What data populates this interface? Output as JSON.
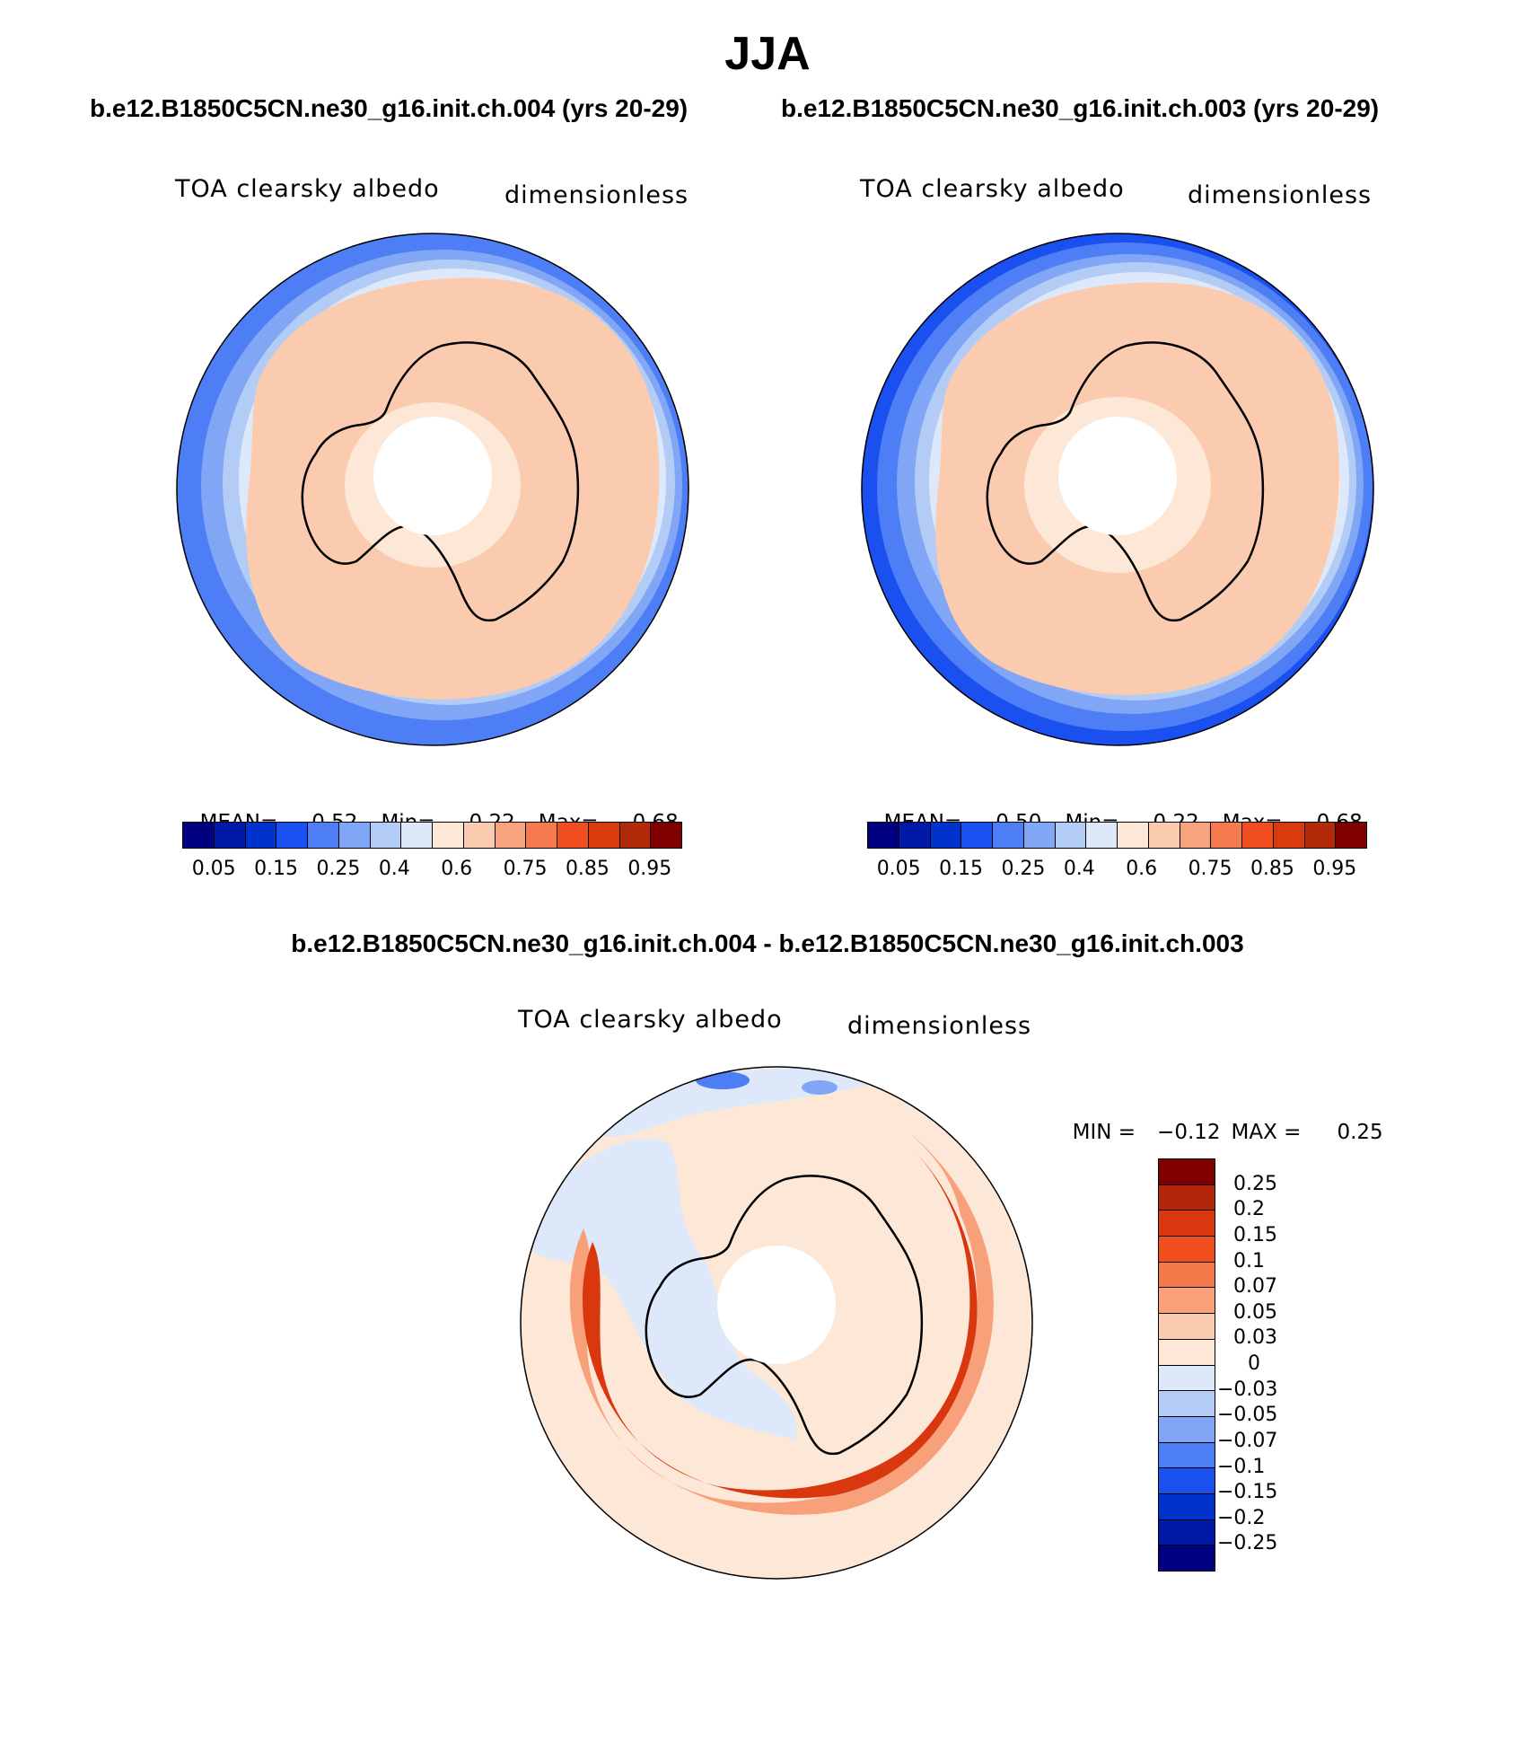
{
  "season": "JJA",
  "top_subtitle_left": "b.e12.B1850C5CN.ne30_g16.init.ch.004 (yrs 20-29)",
  "top_subtitle_right": "b.e12.B1850C5CN.ne30_g16.init.ch.003 (yrs 20-29)",
  "diff_subtitle": "b.e12.B1850C5CN.ne30_g16.init.ch.004 - b.e12.B1850C5CN.ne30_g16.init.ch.003",
  "panels": [
    {
      "variable": "TOA clearsky albedo",
      "units": "dimensionless",
      "mean_label": "MEAN=",
      "mean": "0.52",
      "min_label": "Min=",
      "min": "0.22",
      "max_label": "Max=",
      "max": "0.68"
    },
    {
      "variable": "TOA clearsky albedo",
      "units": "dimensionless",
      "mean_label": "MEAN=",
      "mean": "0.50",
      "min_label": "Min=",
      "min": "0.22",
      "max_label": "Max=",
      "max": "0.68"
    }
  ],
  "diff_panel": {
    "variable": "TOA clearsky albedo",
    "units": "dimensionless",
    "min_label": "MIN =",
    "min": "−0.12",
    "max_label": "MAX =",
    "max": "0.25"
  },
  "abs_colorbar": {
    "colors": [
      "#000080",
      "#0019a6",
      "#0033cc",
      "#1a4ff0",
      "#4d7ef5",
      "#80a6f5",
      "#b3ccf5",
      "#dde9fa",
      "#fde8d8",
      "#fbcbb0",
      "#f7a37e",
      "#f57a4e",
      "#f04e1e",
      "#d93b0e",
      "#b32a0a",
      "#800000"
    ],
    "labels": [
      "0.05",
      "0.15",
      "0.25",
      "0.4",
      "0.6",
      "0.75",
      "0.85",
      "0.95"
    ]
  },
  "diff_colorbar": {
    "colors_top_to_bottom": [
      "#800000",
      "#b3260a",
      "#d9380e",
      "#f04e1e",
      "#f5784a",
      "#f7a07a",
      "#fbcbb0",
      "#fde8d8",
      "#dde9fa",
      "#b3ccf5",
      "#80a6f5",
      "#4d7ef5",
      "#1a4ff0",
      "#0033cc",
      "#0019a6",
      "#000080"
    ],
    "labels": [
      "0.25",
      "0.2",
      "0.15",
      "0.1",
      "0.07",
      "0.05",
      "0.03",
      "0",
      "−0.03",
      "−0.05",
      "−0.07",
      "−0.1",
      "−0.15",
      "−0.2",
      "−0.25"
    ]
  },
  "palette": {
    "land_fill": "#fbcbb0",
    "coast_fill": "#fde8d8",
    "ocean_blue": "#4d7ef5",
    "pole": "#ffffff",
    "diff_red": "#e0401a",
    "diff_light": "#fde8d8",
    "diff_blue": "#dde9fa",
    "outline": "#000000"
  }
}
